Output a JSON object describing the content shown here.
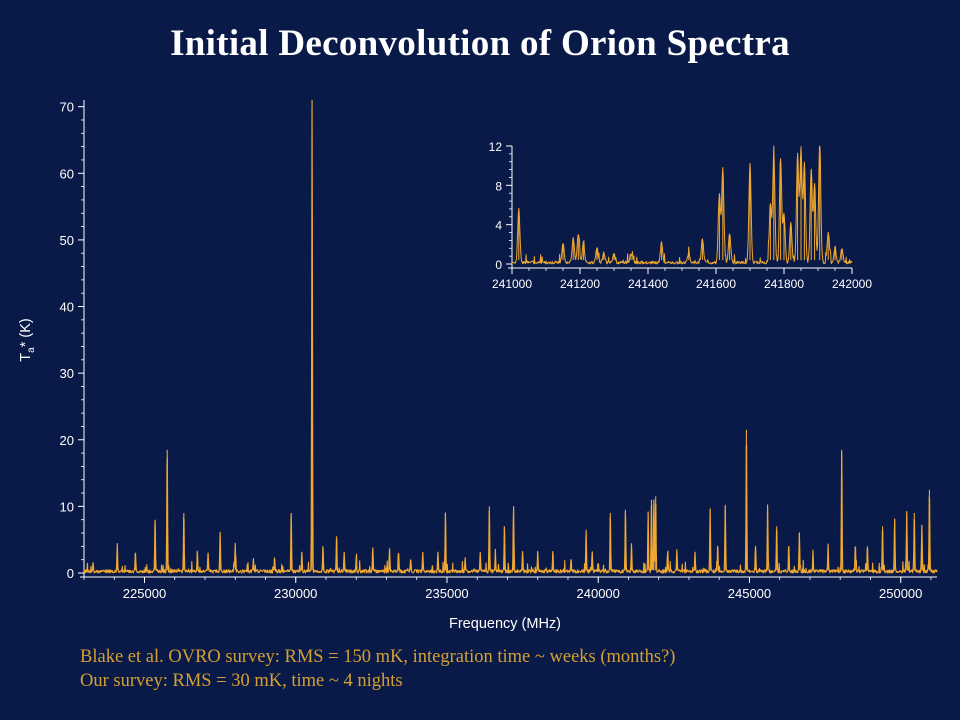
{
  "title": "Initial Deconvolution of Orion Spectra",
  "notes": [
    "Blake et al. OVRO survey:  RMS = 150 mK, integration time ~ weeks (months?)",
    "Our survey:  RMS = 30 mK, time ~ 4 nights"
  ],
  "colors": {
    "background": "#0a1a48",
    "line": "#f0a830",
    "axis": "#ffffff",
    "note_text": "#d4a030"
  },
  "chart_data": [
    {
      "id": "main",
      "type": "line",
      "xlabel": "Frequency (MHz)",
      "ylabel": "Ta* (K)",
      "xlim": [
        223000,
        251200
      ],
      "ylim": [
        0,
        71
      ],
      "xticks": [
        225000,
        230000,
        235000,
        240000,
        245000,
        250000
      ],
      "yticks": [
        0,
        10,
        20,
        30,
        40,
        50,
        60,
        70
      ],
      "baseline_noise_K": 0.5,
      "peaks": [
        {
          "x": 223300,
          "y": 1.5
        },
        {
          "x": 224100,
          "y": 4
        },
        {
          "x": 224700,
          "y": 3
        },
        {
          "x": 225350,
          "y": 8
        },
        {
          "x": 225750,
          "y": 18.5
        },
        {
          "x": 226300,
          "y": 9
        },
        {
          "x": 226750,
          "y": 3
        },
        {
          "x": 227100,
          "y": 3
        },
        {
          "x": 227500,
          "y": 6
        },
        {
          "x": 228000,
          "y": 4
        },
        {
          "x": 228600,
          "y": 2
        },
        {
          "x": 229300,
          "y": 2
        },
        {
          "x": 229850,
          "y": 9
        },
        {
          "x": 230200,
          "y": 3
        },
        {
          "x": 230540,
          "y": 71
        },
        {
          "x": 230900,
          "y": 4
        },
        {
          "x": 231350,
          "y": 5.5
        },
        {
          "x": 231600,
          "y": 3
        },
        {
          "x": 232000,
          "y": 2
        },
        {
          "x": 232550,
          "y": 3.5
        },
        {
          "x": 233100,
          "y": 3.5
        },
        {
          "x": 233400,
          "y": 3
        },
        {
          "x": 233800,
          "y": 2
        },
        {
          "x": 234200,
          "y": 3
        },
        {
          "x": 234700,
          "y": 3
        },
        {
          "x": 234950,
          "y": 9
        },
        {
          "x": 235600,
          "y": 2
        },
        {
          "x": 236100,
          "y": 3
        },
        {
          "x": 236400,
          "y": 10
        },
        {
          "x": 236600,
          "y": 3
        },
        {
          "x": 236900,
          "y": 7
        },
        {
          "x": 237200,
          "y": 10
        },
        {
          "x": 237500,
          "y": 3
        },
        {
          "x": 238000,
          "y": 3
        },
        {
          "x": 238500,
          "y": 3
        },
        {
          "x": 239100,
          "y": 2
        },
        {
          "x": 239600,
          "y": 6
        },
        {
          "x": 239800,
          "y": 3
        },
        {
          "x": 240400,
          "y": 9
        },
        {
          "x": 240900,
          "y": 9.5
        },
        {
          "x": 241100,
          "y": 4
        },
        {
          "x": 241650,
          "y": 9
        },
        {
          "x": 241760,
          "y": 11
        },
        {
          "x": 241840,
          "y": 11
        },
        {
          "x": 241900,
          "y": 11.5
        },
        {
          "x": 242300,
          "y": 3
        },
        {
          "x": 242600,
          "y": 3
        },
        {
          "x": 243200,
          "y": 3
        },
        {
          "x": 243700,
          "y": 9.5
        },
        {
          "x": 243950,
          "y": 4
        },
        {
          "x": 244200,
          "y": 10
        },
        {
          "x": 244900,
          "y": 21.5
        },
        {
          "x": 245200,
          "y": 4
        },
        {
          "x": 245600,
          "y": 10
        },
        {
          "x": 245900,
          "y": 7
        },
        {
          "x": 246300,
          "y": 4
        },
        {
          "x": 246650,
          "y": 6
        },
        {
          "x": 247100,
          "y": 3
        },
        {
          "x": 247600,
          "y": 4
        },
        {
          "x": 248050,
          "y": 18.5
        },
        {
          "x": 248500,
          "y": 4
        },
        {
          "x": 248900,
          "y": 4
        },
        {
          "x": 249400,
          "y": 7
        },
        {
          "x": 249800,
          "y": 8
        },
        {
          "x": 250200,
          "y": 9
        },
        {
          "x": 250450,
          "y": 9
        },
        {
          "x": 250700,
          "y": 7
        },
        {
          "x": 250950,
          "y": 12.5
        }
      ]
    },
    {
      "id": "inset",
      "type": "line",
      "xlim": [
        241000,
        242000
      ],
      "ylim": [
        0,
        12
      ],
      "xticks": [
        241000,
        241200,
        241400,
        241600,
        241800,
        242000
      ],
      "yticks": [
        0,
        4,
        8,
        12
      ],
      "baseline_noise_K": 0.3,
      "peaks": [
        {
          "x": 241020,
          "y": 5.5
        },
        {
          "x": 241150,
          "y": 2
        },
        {
          "x": 241180,
          "y": 2.5
        },
        {
          "x": 241195,
          "y": 3
        },
        {
          "x": 241210,
          "y": 2
        },
        {
          "x": 241250,
          "y": 1.5
        },
        {
          "x": 241270,
          "y": 1
        },
        {
          "x": 241300,
          "y": 1
        },
        {
          "x": 241350,
          "y": 1
        },
        {
          "x": 241440,
          "y": 2
        },
        {
          "x": 241520,
          "y": 1
        },
        {
          "x": 241560,
          "y": 2.5
        },
        {
          "x": 241610,
          "y": 7
        },
        {
          "x": 241620,
          "y": 9.5
        },
        {
          "x": 241640,
          "y": 3
        },
        {
          "x": 241700,
          "y": 10
        },
        {
          "x": 241760,
          "y": 6
        },
        {
          "x": 241770,
          "y": 11
        },
        {
          "x": 241790,
          "y": 10.5
        },
        {
          "x": 241800,
          "y": 5
        },
        {
          "x": 241820,
          "y": 4
        },
        {
          "x": 241840,
          "y": 11
        },
        {
          "x": 241850,
          "y": 11.5
        },
        {
          "x": 241860,
          "y": 10
        },
        {
          "x": 241880,
          "y": 9.5
        },
        {
          "x": 241890,
          "y": 8
        },
        {
          "x": 241905,
          "y": 12
        },
        {
          "x": 241930,
          "y": 3
        },
        {
          "x": 241950,
          "y": 1.5
        },
        {
          "x": 241970,
          "y": 1.5
        }
      ]
    }
  ]
}
